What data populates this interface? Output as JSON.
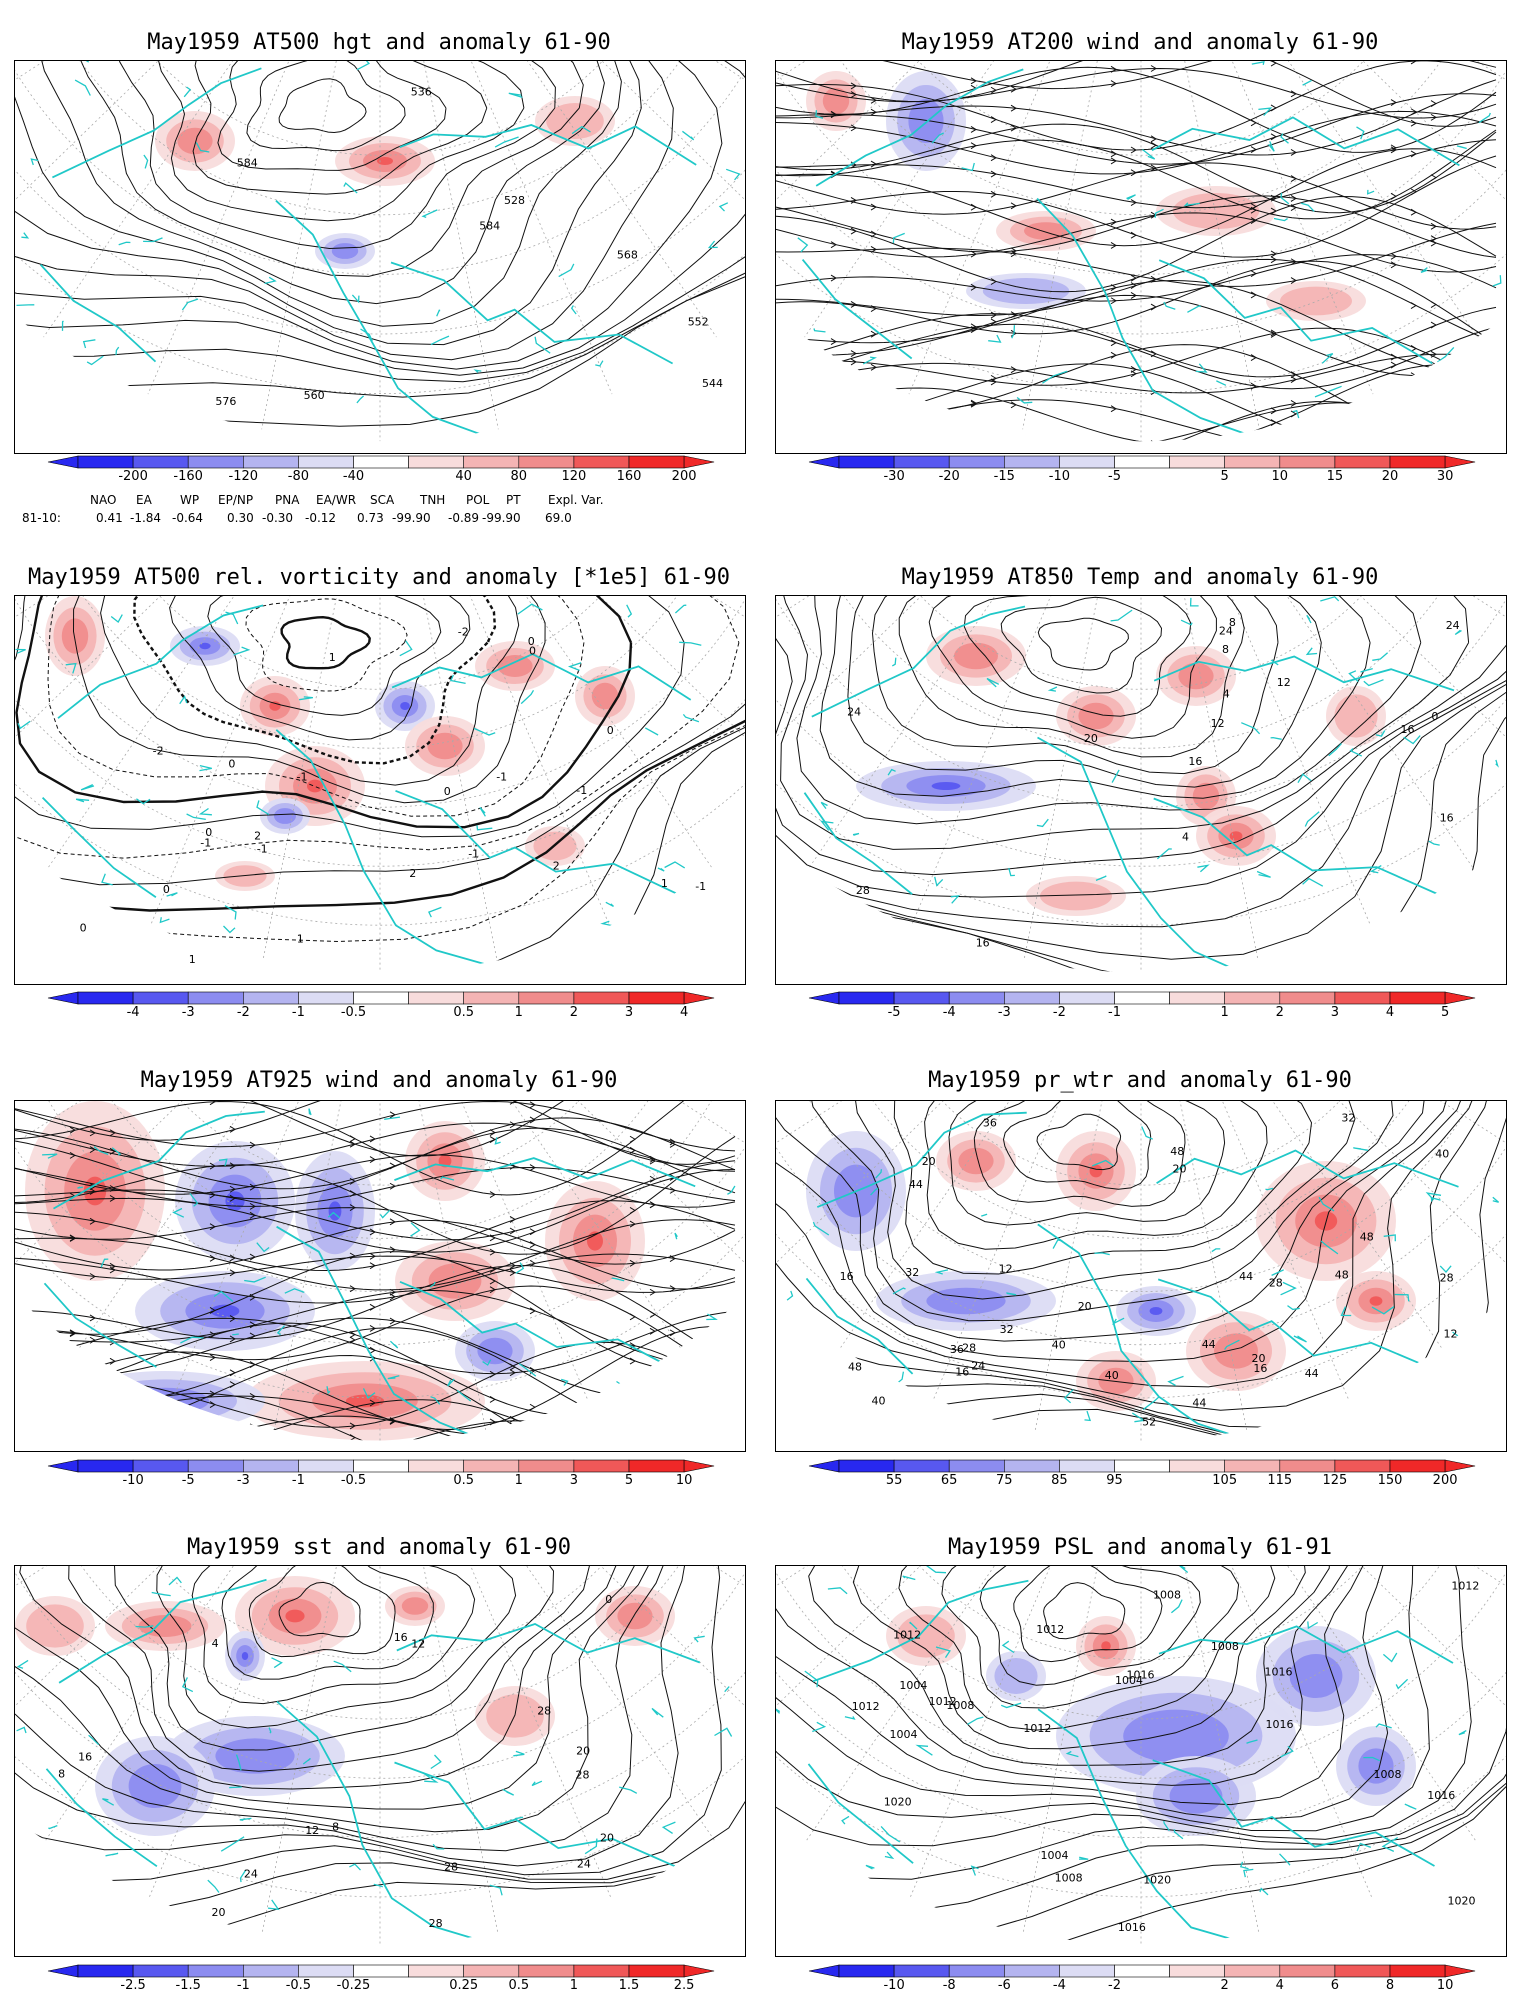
{
  "panels": [
    {
      "title": "May1959 AT500 hgt and anomaly 61-90",
      "contour_labels": [
        "528",
        "536",
        "544",
        "552",
        "560",
        "568",
        "576",
        "584",
        "584"
      ],
      "colorbar": [
        "-200",
        "-160",
        "-120",
        "-80",
        "-40",
        "40",
        "80",
        "120",
        "160",
        "200"
      ]
    },
    {
      "title": "May1959 AT200 wind and anomaly 61-90",
      "contour_labels": [],
      "colorbar": [
        "-30",
        "-20",
        "-15",
        "-10",
        "-5",
        "5",
        "10",
        "15",
        "20",
        "30"
      ]
    },
    {
      "title": "May1959 AT500 rel. vorticity and anomaly [*1e5] 61-90",
      "contour_labels": [
        "0",
        "0",
        "0",
        "0",
        "0",
        "0",
        "0",
        "0",
        "-1",
        "-1",
        "-1",
        "-1",
        "-1",
        "-1",
        "-1",
        "1",
        "1",
        "1",
        "1",
        "2",
        "2",
        "2",
        "-2",
        "-2"
      ],
      "colorbar": [
        "-4",
        "-3",
        "-2",
        "-1",
        "-0.5",
        "0.5",
        "1",
        "2",
        "3",
        "4"
      ]
    },
    {
      "title": "May1959 AT850 Temp and anomaly 61-90",
      "contour_labels": [
        "16",
        "16",
        "16",
        "12",
        "12",
        "8",
        "4",
        "0",
        "4",
        "8",
        "24",
        "24",
        "24",
        "28",
        "20",
        "16"
      ],
      "colorbar": [
        "-5",
        "-4",
        "-3",
        "-2",
        "-1",
        "1",
        "2",
        "3",
        "4",
        "5"
      ]
    },
    {
      "title": "May1959 AT925 wind and anomaly 61-90",
      "contour_labels": [],
      "colorbar": [
        "-10",
        "-5",
        "-3",
        "-1",
        "-0.5",
        "0.5",
        "1",
        "3",
        "5",
        "10"
      ]
    },
    {
      "title": "May1959 pr_wtr and anomaly 61-90",
      "contour_labels": [
        "32",
        "36",
        "52",
        "40",
        "44",
        "48",
        "48",
        "44",
        "40",
        "20",
        "24",
        "28",
        "20",
        "16",
        "12",
        "16",
        "20",
        "28",
        "28",
        "32",
        "32",
        "44",
        "44",
        "48",
        "40",
        "44",
        "12",
        "16",
        "40",
        "48",
        "20",
        "36"
      ],
      "colorbar": [
        "55",
        "65",
        "75",
        "85",
        "95",
        "105",
        "115",
        "125",
        "150",
        "200"
      ]
    },
    {
      "title": "May1959 sst and anomaly 61-90",
      "contour_labels": [
        "28",
        "28",
        "24",
        "20",
        "16",
        "12",
        "8",
        "4",
        "0",
        "8",
        "12",
        "16",
        "20",
        "24",
        "28",
        "28",
        "20"
      ],
      "colorbar": [
        "-2.5",
        "-1.5",
        "-1",
        "-0.5",
        "-0.25",
        "0.25",
        "0.5",
        "1",
        "1.5",
        "2.5"
      ]
    },
    {
      "title": "May1959 PSL and anomaly 61-91",
      "contour_labels": [
        "1012",
        "1016",
        "1020",
        "1012",
        "1016",
        "1020",
        "1016",
        "1012",
        "1008",
        "1016",
        "1008",
        "1004",
        "1004",
        "1008",
        "1008",
        "1004",
        "1008",
        "1004",
        "1012",
        "1016",
        "1020",
        "1012",
        "1012"
      ],
      "colorbar": [
        "-10",
        "-8",
        "-6",
        "-4",
        "-2",
        "2",
        "4",
        "6",
        "8",
        "10"
      ]
    }
  ],
  "teleconnections": {
    "headers": [
      "NAO",
      "EA",
      "WP",
      "EP/NP",
      "PNA",
      "EA/WR",
      "SCA",
      "TNH",
      "POL",
      "PT",
      "Expl. Var."
    ],
    "row_label": "81-10:",
    "values": [
      "0.41",
      "-1.84",
      "-0.64",
      "0.30",
      "-0.30",
      "-0.12",
      "0.73",
      "-99.90",
      "-0.89",
      "-99.90",
      "69.0"
    ]
  },
  "colors": {
    "coast": "#20c8c8",
    "colorbar_neg": [
      "#2828f0",
      "#5858f0",
      "#8c8cf0",
      "#b4b4f0",
      "#dcdcf4"
    ],
    "colorbar_pos": [
      "#f8dcdc",
      "#f4b4b4",
      "#f08c8c",
      "#f05858",
      "#f02828"
    ],
    "neg_fill": "#7c7cf0",
    "pos_fill": "#f07c7c"
  }
}
